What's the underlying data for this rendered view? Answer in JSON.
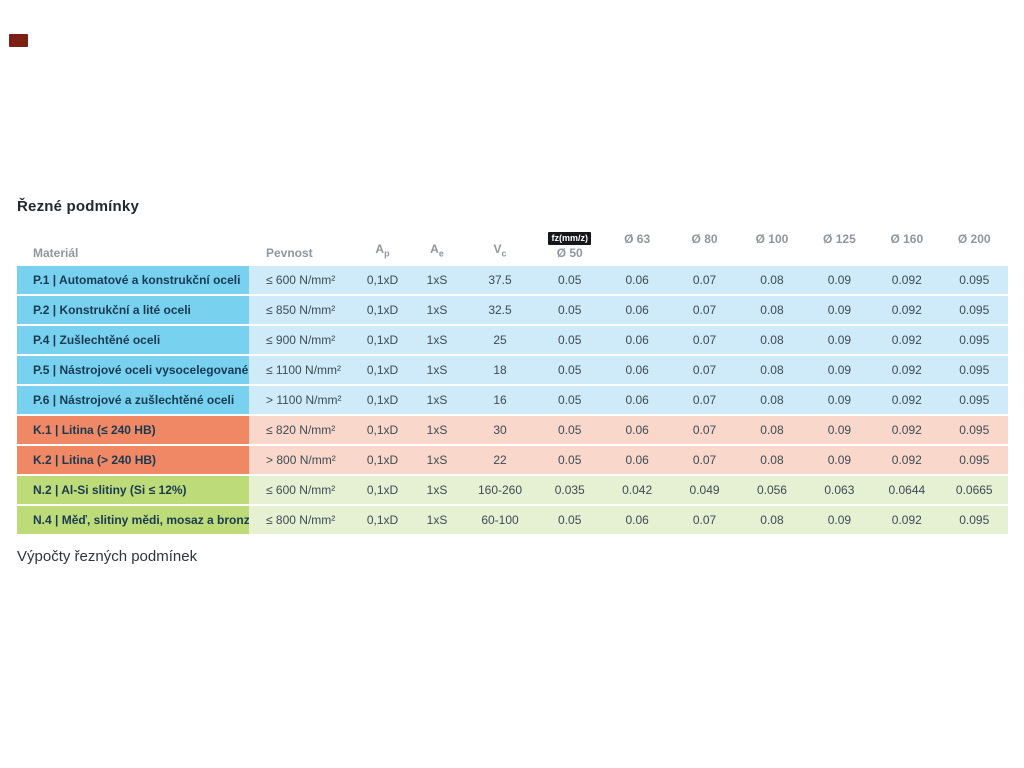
{
  "logo": {
    "color": "#7c2016"
  },
  "page_title": "Řezné podmínky",
  "footer_text": "Výpočty řezných podmínek",
  "table": {
    "fz_badge": "fz(mm/z)",
    "headers": {
      "material": "Materiál",
      "pevnost": "Pevnost",
      "ap_base": "A",
      "ap_sub": "p",
      "ae_base": "A",
      "ae_sub": "e",
      "vc_base": "V",
      "vc_sub": "c",
      "diameters": [
        "Ø 50",
        "Ø 63",
        "Ø 80",
        "Ø 100",
        "Ø 125",
        "Ø 160",
        "Ø 200"
      ]
    },
    "rows": [
      {
        "group": "p",
        "material": "P.1 | Automatové a konstrukční oceli",
        "pevnost": "≤ 600 N/mm²",
        "ap": "0,1xD",
        "ae": "1xS",
        "vc": "37.5",
        "fz": [
          "0.05",
          "0.06",
          "0.07",
          "0.08",
          "0.09",
          "0.092",
          "0.095"
        ]
      },
      {
        "group": "p",
        "material": "P.2 | Konstrukční a lité oceli",
        "pevnost": "≤ 850 N/mm²",
        "ap": "0,1xD",
        "ae": "1xS",
        "vc": "32.5",
        "fz": [
          "0.05",
          "0.06",
          "0.07",
          "0.08",
          "0.09",
          "0.092",
          "0.095"
        ]
      },
      {
        "group": "p",
        "material": "P.4 | Zušlechtěné oceli",
        "pevnost": "≤ 900 N/mm²",
        "ap": "0,1xD",
        "ae": "1xS",
        "vc": "25",
        "fz": [
          "0.05",
          "0.06",
          "0.07",
          "0.08",
          "0.09",
          "0.092",
          "0.095"
        ]
      },
      {
        "group": "p",
        "material": "P.5 | Nástrojové oceli vysocelegované",
        "pevnost": "≤ 1100 N/mm²",
        "ap": "0,1xD",
        "ae": "1xS",
        "vc": "18",
        "fz": [
          "0.05",
          "0.06",
          "0.07",
          "0.08",
          "0.09",
          "0.092",
          "0.095"
        ]
      },
      {
        "group": "p",
        "material": "P.6 | Nástrojové a zušlechtěné oceli",
        "pevnost": "> 1100 N/mm²",
        "ap": "0,1xD",
        "ae": "1xS",
        "vc": "16",
        "fz": [
          "0.05",
          "0.06",
          "0.07",
          "0.08",
          "0.09",
          "0.092",
          "0.095"
        ]
      },
      {
        "group": "k",
        "material": "K.1 | Litina (≤ 240 HB)",
        "pevnost": "≤ 820 N/mm²",
        "ap": "0,1xD",
        "ae": "1xS",
        "vc": "30",
        "fz": [
          "0.05",
          "0.06",
          "0.07",
          "0.08",
          "0.09",
          "0.092",
          "0.095"
        ]
      },
      {
        "group": "k",
        "material": "K.2 | Litina (> 240 HB)",
        "pevnost": "> 800 N/mm²",
        "ap": "0,1xD",
        "ae": "1xS",
        "vc": "22",
        "fz": [
          "0.05",
          "0.06",
          "0.07",
          "0.08",
          "0.09",
          "0.092",
          "0.095"
        ]
      },
      {
        "group": "n",
        "material": "N.2 | Al-Si slitiny (Si ≤ 12%)",
        "pevnost": "≤ 600 N/mm²",
        "ap": "0,1xD",
        "ae": "1xS",
        "vc": "160-260",
        "fz": [
          "0.035",
          "0.042",
          "0.049",
          "0.056",
          "0.063",
          "0.0644",
          "0.0665"
        ]
      },
      {
        "group": "n",
        "material": "N.4 | Měď, slitiny mědi, mosaz a bronz",
        "pevnost": "≤ 800 N/mm²",
        "ap": "0,1xD",
        "ae": "1xS",
        "vc": "60-100",
        "fz": [
          "0.05",
          "0.06",
          "0.07",
          "0.08",
          "0.09",
          "0.092",
          "0.095"
        ]
      }
    ]
  },
  "colors": {
    "p_material": "#79d1f0",
    "p_row": "#cfeaf8",
    "k_material": "#f08765",
    "k_row": "#f9d7cb",
    "n_material": "#bedb79",
    "n_row": "#e6f0d3",
    "badge_bg": "#16171b",
    "logo_red": "#7c2016"
  }
}
